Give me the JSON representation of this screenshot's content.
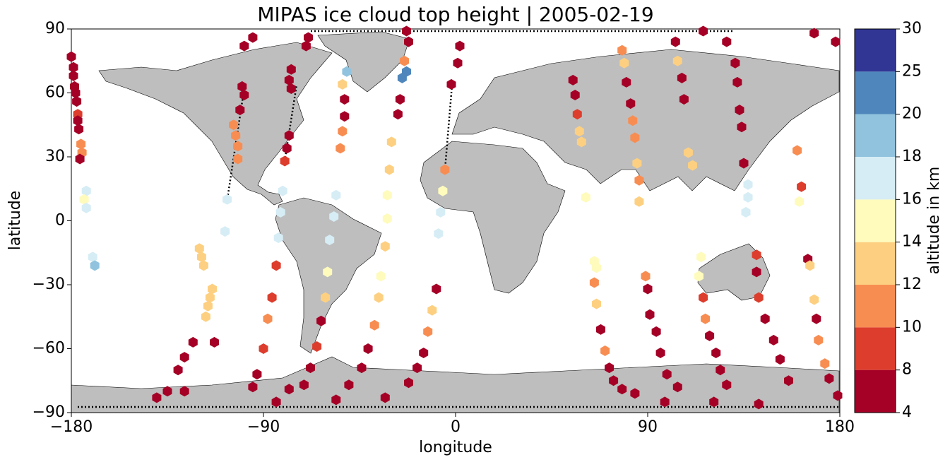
{
  "chart_data": {
    "type": "scatter",
    "title": "MIPAS ice cloud top height | 2005-02-19",
    "x_label": "longitude",
    "y_label": "latitude",
    "colorbar_label": "altitude in km",
    "xlim": [
      -180,
      180
    ],
    "ylim": [
      -90,
      90
    ],
    "xticks": [
      {
        "value": -180,
        "label": "−180"
      },
      {
        "value": -90,
        "label": "−90"
      },
      0,
      90,
      180
    ],
    "yticks": [
      {
        "value": -90,
        "label": "−90"
      },
      {
        "value": -60,
        "label": "−60"
      },
      {
        "value": -30,
        "label": "−30"
      },
      0,
      30,
      60,
      90
    ],
    "boundaries": [
      4,
      8,
      10,
      12,
      14,
      16,
      18,
      20,
      25,
      30
    ],
    "colors": [
      "#a50026",
      "#dd3d2d",
      "#f88d52",
      "#fdd081",
      "#fefbbd",
      "#d6edf5",
      "#91c3de",
      "#4f87bc",
      "#313695"
    ],
    "x": [
      -180,
      -179,
      -179,
      -178.5,
      -178,
      -177.5,
      -177,
      -177,
      -176.5,
      -175.5,
      -175,
      -176,
      -173,
      -174,
      -173,
      -170,
      -169,
      -120,
      -119,
      -118,
      -114,
      -115,
      -116,
      -117,
      -123,
      -127,
      -130,
      -135,
      -140,
      -104,
      -103,
      -102,
      -102,
      -100,
      -99,
      -101,
      -99,
      -95,
      -108,
      -107,
      -113,
      -127,
      -77,
      -78,
      -77,
      -70,
      -69,
      -78,
      -79,
      -80,
      -81,
      -82,
      -83,
      -84,
      -86,
      -88,
      -90,
      -93,
      -95,
      -84,
      -51,
      -53,
      -52,
      -52,
      -53,
      -54,
      -56,
      -57,
      -59,
      -60,
      -61,
      -63,
      -65,
      -68,
      -71,
      -78,
      -23,
      -22,
      -24,
      -23,
      -25,
      -26,
      -27,
      -30,
      -31,
      -32,
      -32,
      -33,
      -35,
      -36,
      -38,
      -41,
      -44,
      -50,
      -56,
      2,
      1,
      -2,
      -5,
      -6,
      -7,
      -8,
      -9,
      -11,
      -13,
      -15,
      -18,
      -22,
      -33,
      55,
      56,
      57,
      58,
      59,
      61,
      65,
      66,
      65,
      66,
      68,
      70,
      72,
      74,
      78,
      84,
      78,
      79,
      80,
      82,
      83,
      84,
      85,
      86,
      86,
      89,
      90,
      91,
      94,
      96,
      99,
      104,
      98,
      103,
      104,
      106,
      107,
      109,
      111,
      115,
      114,
      116,
      117,
      119,
      122,
      124,
      127,
      121,
      116,
      127,
      131,
      132,
      133,
      134,
      135,
      137,
      137,
      136,
      141,
      141,
      142,
      145,
      149,
      152,
      156,
      142,
      160,
      162,
      161,
      165,
      166,
      168,
      169,
      170,
      173,
      175,
      179,
      168,
      178
    ],
    "y": [
      77,
      72,
      68,
      63,
      60,
      56,
      50,
      47,
      43,
      36,
      32,
      29,
      14,
      10,
      6,
      -17,
      -21,
      -13,
      -17,
      -21,
      -32,
      -36,
      -40,
      -45,
      -57,
      -64,
      -70,
      -80,
      -83,
      45,
      40,
      35,
      29,
      63,
      59,
      52,
      82,
      86,
      -5,
      10,
      -57,
      -80,
      62,
      66,
      71,
      82,
      86,
      40,
      34,
      28,
      14,
      4,
      -8,
      -21,
      -36,
      -46,
      -60,
      -72,
      -78,
      -85,
      70,
      64,
      57,
      49,
      42,
      34,
      12,
      2,
      -9,
      -24,
      -36,
      -47,
      -59,
      -69,
      -77,
      -79,
      89,
      84,
      75,
      70,
      67,
      57,
      50,
      37,
      24,
      12,
      1,
      -12,
      -26,
      -36,
      -49,
      -60,
      -69,
      -77,
      -84,
      82,
      74,
      64,
      24,
      14,
      4,
      -6,
      -32,
      -42,
      -52,
      -62,
      -69,
      -76,
      -83,
      66,
      59,
      50,
      42,
      37,
      11,
      -19,
      -22,
      -29,
      -39,
      -51,
      -61,
      -69,
      -75,
      -79,
      -81,
      80,
      74,
      65,
      55,
      47,
      39,
      27,
      19,
      9,
      -26,
      -32,
      -44,
      -52,
      -62,
      -72,
      -78,
      -85,
      84,
      75,
      67,
      57,
      32,
      26,
      -17,
      -26,
      -36,
      -46,
      -54,
      -62,
      -70,
      -77,
      -85,
      89,
      84,
      74,
      65,
      52,
      44,
      27,
      17,
      11,
      4,
      -16,
      -24,
      -36,
      -46,
      -56,
      -65,
      -75,
      -86,
      33,
      16,
      9,
      -18,
      -21,
      -37,
      -46,
      -56,
      -67,
      -74,
      -82,
      88,
      84
    ],
    "values": [
      5,
      5,
      5,
      6,
      5,
      6,
      9,
      6,
      6,
      10,
      11,
      5,
      17,
      15,
      17,
      17,
      19,
      13,
      13,
      13,
      13,
      13,
      13,
      13,
      5,
      5,
      5,
      6,
      5,
      11,
      11,
      11,
      10,
      5,
      5,
      5,
      5,
      5,
      17,
      17,
      5,
      5,
      5,
      5,
      5,
      5,
      5,
      5,
      5,
      9,
      17,
      17,
      17,
      9,
      9,
      10,
      9,
      5,
      5,
      5,
      19,
      12,
      5,
      5,
      11,
      10,
      16,
      17,
      17,
      14,
      12,
      5,
      9,
      5,
      5,
      5,
      5,
      5,
      10,
      21,
      21,
      5,
      5,
      12,
      12,
      15,
      15,
      13,
      15,
      12,
      10,
      5,
      5,
      5,
      5,
      5,
      5,
      5,
      11,
      14,
      17,
      17,
      5,
      12,
      10,
      5,
      5,
      5,
      5,
      5,
      5,
      9,
      12,
      12,
      14,
      15,
      14,
      10,
      13,
      5,
      10,
      5,
      5,
      5,
      5,
      11,
      12,
      5,
      5,
      11,
      10,
      12,
      10,
      13,
      11,
      5,
      5,
      5,
      5,
      5,
      5,
      5,
      5,
      12,
      5,
      5,
      12,
      13,
      15,
      14,
      9,
      10,
      5,
      5,
      5,
      5,
      5,
      5,
      5,
      5,
      5,
      5,
      5,
      5,
      17,
      17,
      17,
      9,
      5,
      9,
      5,
      5,
      5,
      5,
      5,
      11,
      9,
      15,
      5,
      13,
      13,
      5,
      10,
      11,
      5,
      5,
      5,
      5
    ]
  }
}
